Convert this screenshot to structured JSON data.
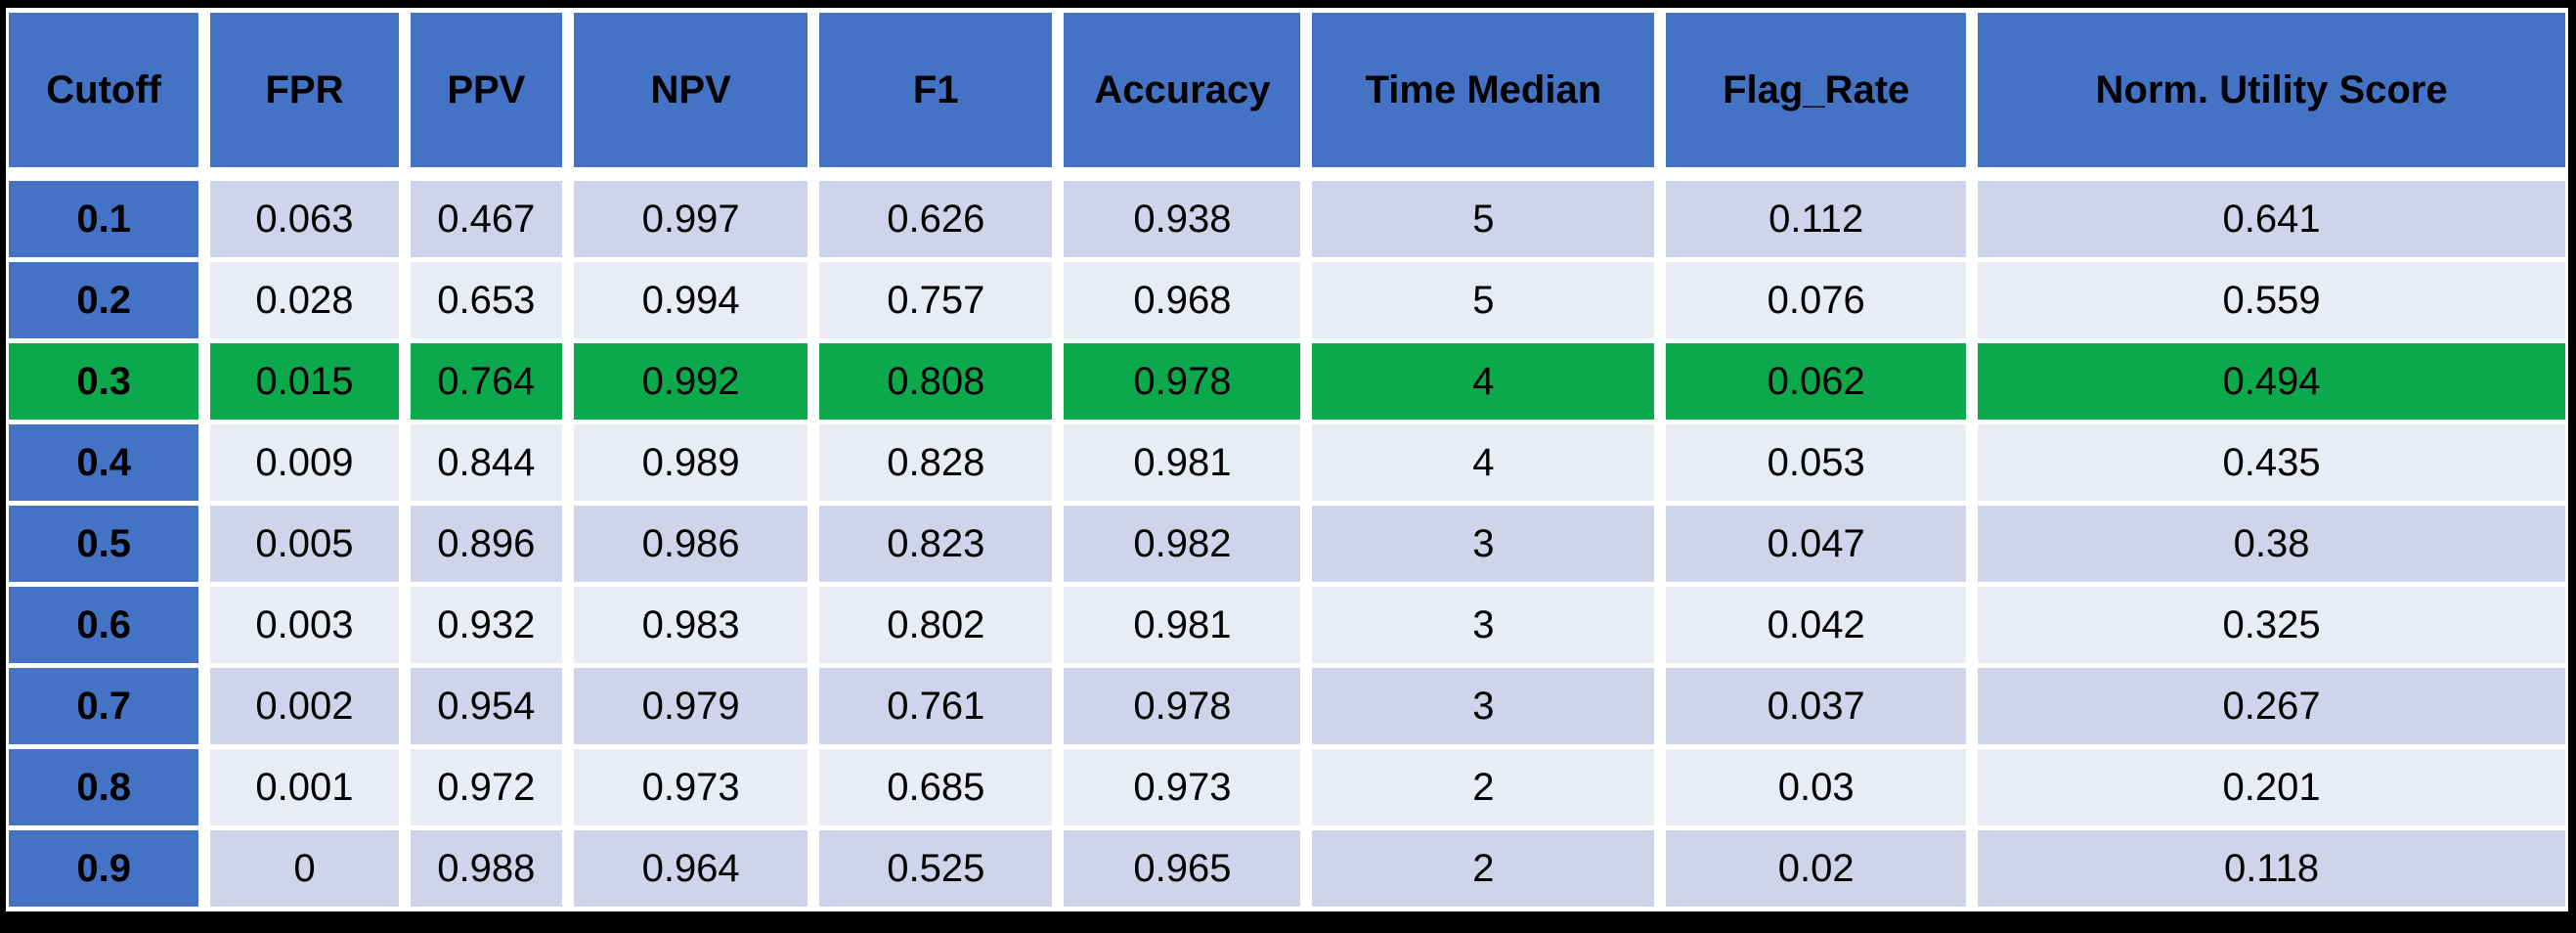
{
  "chart_data": {
    "type": "table",
    "columns": [
      "Cutoff",
      "FPR",
      "PPV",
      "NPV",
      "F1",
      "Accuracy",
      "Time Median",
      "Flag_Rate",
      "Norm. Utility Score"
    ],
    "rows": [
      [
        0.1,
        0.063,
        0.467,
        0.997,
        0.626,
        0.938,
        5,
        0.112,
        0.641
      ],
      [
        0.2,
        0.028,
        0.653,
        0.994,
        0.757,
        0.968,
        5,
        0.076,
        0.559
      ],
      [
        0.3,
        0.015,
        0.764,
        0.992,
        0.808,
        0.978,
        4,
        0.062,
        0.494
      ],
      [
        0.4,
        0.009,
        0.844,
        0.989,
        0.828,
        0.981,
        4,
        0.053,
        0.435
      ],
      [
        0.5,
        0.005,
        0.896,
        0.986,
        0.823,
        0.982,
        3,
        0.047,
        0.38
      ],
      [
        0.6,
        0.003,
        0.932,
        0.983,
        0.802,
        0.981,
        3,
        0.042,
        0.325
      ],
      [
        0.7,
        0.002,
        0.954,
        0.979,
        0.761,
        0.978,
        3,
        0.037,
        0.267
      ],
      [
        0.8,
        0.001,
        0.972,
        0.973,
        0.685,
        0.973,
        2,
        0.03,
        0.201
      ],
      [
        0.9,
        0,
        0.988,
        0.964,
        0.525,
        0.965,
        2,
        0.02,
        0.118
      ]
    ],
    "highlighted_cutoff": 0.3,
    "legend_position": "none",
    "grid": "banded-rows"
  },
  "colors": {
    "header_blue": "#4472C4",
    "band_dark": "#CFD4EA",
    "band_light": "#E9EBF5",
    "highlight_green": "#0CA84C",
    "gap_white": "#FFFFFF",
    "frame_black": "#000000"
  }
}
